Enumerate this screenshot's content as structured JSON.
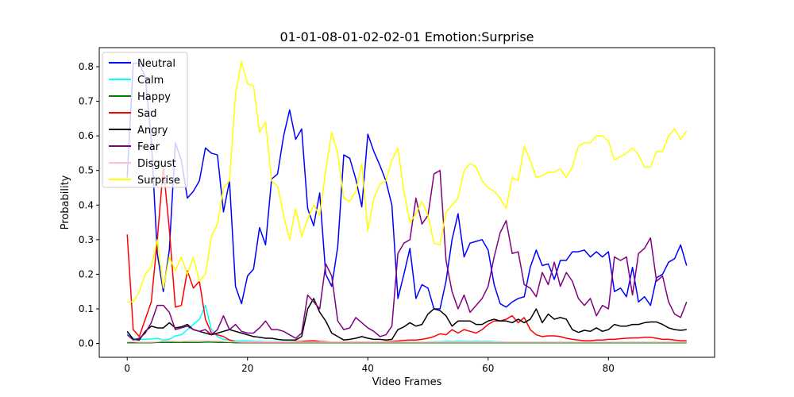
{
  "chart_data": {
    "type": "line",
    "title": "01-01-08-01-02-02-01 Emotion:Surprise",
    "xlabel": "Video Frames",
    "ylabel": "Probability",
    "xlim": [
      -4.65,
      97.65
    ],
    "ylim": [
      -0.04,
      0.855
    ],
    "xticks": [
      0,
      20,
      40,
      60,
      80
    ],
    "yticks": [
      0.0,
      0.1,
      0.2,
      0.3,
      0.4,
      0.5,
      0.6,
      0.7,
      0.8
    ],
    "ytick_labels": [
      "0.0",
      "0.1",
      "0.2",
      "0.3",
      "0.4",
      "0.5",
      "0.6",
      "0.7",
      "0.8"
    ],
    "grid": false,
    "legend": "top-left",
    "series": [
      {
        "name": "Neutral",
        "color": "#0000ff",
        "values": [
          0.48,
          0.81,
          0.81,
          0.77,
          0.59,
          0.26,
          0.15,
          0.27,
          0.58,
          0.53,
          0.42,
          0.44,
          0.47,
          0.565,
          0.55,
          0.545,
          0.38,
          0.47,
          0.165,
          0.115,
          0.195,
          0.215,
          0.335,
          0.285,
          0.475,
          0.49,
          0.6,
          0.675,
          0.59,
          0.62,
          0.39,
          0.34,
          0.435,
          0.2,
          0.165,
          0.28,
          0.545,
          0.535,
          0.475,
          0.395,
          0.605,
          0.555,
          0.515,
          0.47,
          0.4,
          0.13,
          0.2,
          0.275,
          0.13,
          0.17,
          0.16,
          0.1,
          0.1,
          0.18,
          0.3,
          0.375,
          0.25,
          0.29,
          0.295,
          0.3,
          0.27,
          0.17,
          0.115,
          0.105,
          0.12,
          0.13,
          0.135,
          0.22,
          0.27,
          0.225,
          0.23,
          0.185,
          0.24,
          0.24,
          0.265,
          0.265,
          0.27,
          0.25,
          0.265,
          0.25,
          0.265,
          0.15,
          0.16,
          0.135,
          0.22,
          0.12,
          0.135,
          0.11,
          0.19,
          0.2,
          0.235,
          0.245,
          0.285,
          0.225
        ]
      },
      {
        "name": "Calm",
        "color": "#00ffff",
        "values": [
          0.03,
          0.015,
          0.012,
          0.012,
          0.013,
          0.015,
          0.01,
          0.012,
          0.022,
          0.025,
          0.04,
          0.055,
          0.07,
          0.11,
          0.04,
          0.02,
          0.012,
          0.01,
          0.008,
          0.007,
          0.007,
          0.006,
          0.006,
          0.005,
          0.005,
          0.005,
          0.005,
          0.005,
          0.005,
          0.005,
          0.005,
          0.005,
          0.004,
          0.004,
          0.004,
          0.004,
          0.004,
          0.004,
          0.004,
          0.004,
          0.004,
          0.004,
          0.004,
          0.004,
          0.004,
          0.004,
          0.004,
          0.004,
          0.004,
          0.004,
          0.004,
          0.005,
          0.005,
          0.006,
          0.006,
          0.006,
          0.006,
          0.006,
          0.006,
          0.006,
          0.006,
          0.005,
          0.005,
          0.004,
          0.004,
          0.004,
          0.004,
          0.004,
          0.004,
          0.004,
          0.004,
          0.004,
          0.004,
          0.004,
          0.004,
          0.004,
          0.004,
          0.004,
          0.004,
          0.004,
          0.004,
          0.004,
          0.004,
          0.004,
          0.004,
          0.004,
          0.004,
          0.004,
          0.004,
          0.004,
          0.004,
          0.004,
          0.004,
          0.004
        ]
      },
      {
        "name": "Happy",
        "color": "#008000",
        "values": [
          0.002,
          0.002,
          0.002,
          0.002,
          0.002,
          0.003,
          0.003,
          0.003,
          0.003,
          0.003,
          0.003,
          0.003,
          0.003,
          0.004,
          0.004,
          0.003,
          0.003,
          0.003,
          0.002,
          0.002,
          0.002,
          0.002,
          0.002,
          0.002,
          0.002,
          0.002,
          0.002,
          0.002,
          0.002,
          0.002,
          0.002,
          0.002,
          0.002,
          0.002,
          0.002,
          0.002,
          0.002,
          0.002,
          0.002,
          0.002,
          0.002,
          0.002,
          0.002,
          0.002,
          0.002,
          0.002,
          0.002,
          0.002,
          0.002,
          0.002,
          0.002,
          0.002,
          0.002,
          0.002,
          0.002,
          0.002,
          0.002,
          0.002,
          0.002,
          0.002,
          0.002,
          0.002,
          0.002,
          0.002,
          0.002,
          0.002,
          0.002,
          0.002,
          0.002,
          0.002,
          0.002,
          0.002,
          0.002,
          0.002,
          0.002,
          0.002,
          0.002,
          0.002,
          0.002,
          0.002,
          0.002,
          0.002,
          0.002,
          0.002,
          0.002,
          0.002,
          0.002,
          0.002,
          0.002,
          0.002,
          0.002,
          0.002,
          0.002,
          0.002
        ]
      },
      {
        "name": "Sad",
        "color": "#ff0000",
        "values": [
          0.315,
          0.04,
          0.02,
          0.07,
          0.12,
          0.3,
          0.51,
          0.33,
          0.105,
          0.11,
          0.21,
          0.16,
          0.18,
          0.07,
          0.03,
          0.025,
          0.02,
          0.01,
          0.005,
          0.004,
          0.003,
          0.003,
          0.003,
          0.003,
          0.003,
          0.003,
          0.003,
          0.004,
          0.005,
          0.006,
          0.007,
          0.008,
          0.006,
          0.005,
          0.004,
          0.004,
          0.004,
          0.004,
          0.004,
          0.004,
          0.004,
          0.004,
          0.004,
          0.005,
          0.006,
          0.007,
          0.009,
          0.01,
          0.01,
          0.012,
          0.015,
          0.02,
          0.028,
          0.025,
          0.04,
          0.03,
          0.04,
          0.035,
          0.03,
          0.04,
          0.055,
          0.065,
          0.065,
          0.07,
          0.08,
          0.06,
          0.075,
          0.04,
          0.025,
          0.02,
          0.022,
          0.022,
          0.02,
          0.015,
          0.012,
          0.01,
          0.008,
          0.008,
          0.01,
          0.01,
          0.012,
          0.012,
          0.014,
          0.015,
          0.016,
          0.016,
          0.018,
          0.018,
          0.015,
          0.012,
          0.012,
          0.01,
          0.008,
          0.008
        ]
      },
      {
        "name": "Angry",
        "color": "#000000",
        "values": [
          0.035,
          0.012,
          0.01,
          0.035,
          0.05,
          0.045,
          0.045,
          0.06,
          0.045,
          0.048,
          0.055,
          0.04,
          0.035,
          0.03,
          0.025,
          0.03,
          0.035,
          0.04,
          0.035,
          0.03,
          0.025,
          0.02,
          0.018,
          0.015,
          0.015,
          0.012,
          0.01,
          0.01,
          0.01,
          0.02,
          0.1,
          0.13,
          0.09,
          0.065,
          0.03,
          0.02,
          0.01,
          0.012,
          0.015,
          0.02,
          0.015,
          0.012,
          0.012,
          0.01,
          0.012,
          0.04,
          0.048,
          0.06,
          0.05,
          0.055,
          0.085,
          0.1,
          0.095,
          0.08,
          0.05,
          0.065,
          0.065,
          0.065,
          0.055,
          0.055,
          0.065,
          0.07,
          0.065,
          0.065,
          0.06,
          0.07,
          0.06,
          0.07,
          0.1,
          0.06,
          0.085,
          0.07,
          0.075,
          0.07,
          0.04,
          0.032,
          0.038,
          0.035,
          0.045,
          0.035,
          0.04,
          0.055,
          0.05,
          0.05,
          0.055,
          0.055,
          0.06,
          0.062,
          0.062,
          0.055,
          0.045,
          0.04,
          0.038,
          0.04
        ]
      },
      {
        "name": "Fear",
        "color": "#800080",
        "values": [
          0.025,
          0.01,
          0.015,
          0.03,
          0.06,
          0.11,
          0.11,
          0.09,
          0.04,
          0.045,
          0.05,
          0.04,
          0.035,
          0.04,
          0.025,
          0.04,
          0.08,
          0.04,
          0.055,
          0.035,
          0.03,
          0.03,
          0.045,
          0.065,
          0.04,
          0.04,
          0.035,
          0.025,
          0.015,
          0.03,
          0.14,
          0.12,
          0.1,
          0.23,
          0.195,
          0.065,
          0.04,
          0.045,
          0.075,
          0.06,
          0.045,
          0.035,
          0.02,
          0.025,
          0.05,
          0.26,
          0.29,
          0.3,
          0.42,
          0.345,
          0.37,
          0.49,
          0.5,
          0.24,
          0.15,
          0.1,
          0.14,
          0.09,
          0.11,
          0.13,
          0.165,
          0.25,
          0.32,
          0.355,
          0.26,
          0.265,
          0.17,
          0.16,
          0.135,
          0.205,
          0.17,
          0.235,
          0.165,
          0.205,
          0.18,
          0.13,
          0.11,
          0.13,
          0.08,
          0.11,
          0.1,
          0.25,
          0.24,
          0.25,
          0.14,
          0.26,
          0.275,
          0.305,
          0.18,
          0.195,
          0.12,
          0.085,
          0.075,
          0.12
        ]
      },
      {
        "name": "Disgust",
        "color": "#ffc0cb",
        "values": [
          0.005,
          0.005,
          0.004,
          0.004,
          0.004,
          0.005,
          0.007,
          0.007,
          0.006,
          0.006,
          0.007,
          0.008,
          0.008,
          0.008,
          0.007,
          0.007,
          0.006,
          0.005,
          0.005,
          0.004,
          0.004,
          0.004,
          0.004,
          0.004,
          0.004,
          0.004,
          0.004,
          0.004,
          0.004,
          0.004,
          0.004,
          0.004,
          0.004,
          0.004,
          0.004,
          0.004,
          0.004,
          0.004,
          0.004,
          0.004,
          0.004,
          0.004,
          0.004,
          0.004,
          0.004,
          0.004,
          0.004,
          0.004,
          0.004,
          0.004,
          0.004,
          0.004,
          0.004,
          0.004,
          0.004,
          0.004,
          0.004,
          0.004,
          0.004,
          0.004,
          0.004,
          0.004,
          0.004,
          0.004,
          0.004,
          0.004,
          0.004,
          0.004,
          0.004,
          0.004,
          0.004,
          0.004,
          0.004,
          0.004,
          0.004,
          0.004,
          0.004,
          0.004,
          0.004,
          0.004,
          0.004,
          0.004,
          0.004,
          0.004,
          0.004,
          0.004,
          0.004,
          0.004,
          0.004,
          0.004,
          0.004,
          0.004,
          0.004,
          0.004
        ]
      },
      {
        "name": "Surprise",
        "color": "#ffff00",
        "values": [
          0.12,
          0.12,
          0.15,
          0.2,
          0.22,
          0.3,
          0.16,
          0.25,
          0.21,
          0.25,
          0.2,
          0.25,
          0.18,
          0.2,
          0.31,
          0.345,
          0.45,
          0.47,
          0.72,
          0.815,
          0.75,
          0.745,
          0.61,
          0.64,
          0.47,
          0.455,
          0.37,
          0.3,
          0.39,
          0.31,
          0.36,
          0.4,
          0.37,
          0.5,
          0.61,
          0.55,
          0.42,
          0.41,
          0.44,
          0.52,
          0.325,
          0.42,
          0.46,
          0.47,
          0.53,
          0.565,
          0.44,
          0.35,
          0.375,
          0.41,
          0.37,
          0.29,
          0.285,
          0.38,
          0.4,
          0.42,
          0.5,
          0.52,
          0.51,
          0.47,
          0.45,
          0.44,
          0.42,
          0.39,
          0.48,
          0.47,
          0.57,
          0.53,
          0.48,
          0.485,
          0.495,
          0.495,
          0.505,
          0.48,
          0.51,
          0.57,
          0.58,
          0.58,
          0.6,
          0.6,
          0.585,
          0.53,
          0.54,
          0.55,
          0.565,
          0.545,
          0.51,
          0.51,
          0.555,
          0.555,
          0.6,
          0.62,
          0.59,
          0.615
        ]
      }
    ]
  }
}
